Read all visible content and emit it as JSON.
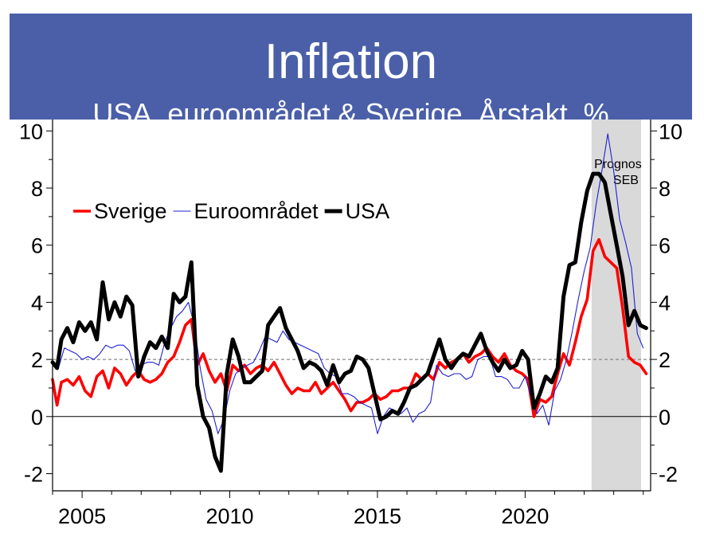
{
  "header": {
    "title": "Inflation",
    "subtitle": "USA, euroområdet & Sverige. Årstakt. %"
  },
  "chart_data": {
    "type": "line",
    "ylim": [
      -2.6,
      10.4
    ],
    "xlim": [
      2004.0,
      2024.25
    ],
    "yticks": [
      -2,
      0,
      2,
      4,
      6,
      8,
      10
    ],
    "ytick_labels": [
      "-2",
      "0",
      "2",
      "4",
      "6",
      "8",
      "10"
    ],
    "xticks": [
      2005,
      2010,
      2015,
      2020
    ],
    "xtick_labels": [
      "2005",
      "2010",
      "2015",
      "2020"
    ],
    "reference_line": 2,
    "forecast_band": {
      "from": 2022.25,
      "to": 2024.25,
      "label_line1": "Prognos",
      "label_line2": "SEB",
      "color": "#d9d9d9"
    },
    "legend": {
      "placement": "upper-left"
    },
    "colors": {
      "Sverige": "#ff0000",
      "Euroområdet": "#1f1fd6",
      "USA": "#000000",
      "banner": "#4a5fa8"
    },
    "series": [
      {
        "name": "Sverige",
        "x": [
          2004.0,
          2004.15,
          2004.3,
          2004.5,
          2004.7,
          2004.9,
          2005.1,
          2005.3,
          2005.5,
          2005.7,
          2005.9,
          2006.1,
          2006.3,
          2006.5,
          2006.7,
          2006.9,
          2007.1,
          2007.3,
          2007.5,
          2007.7,
          2007.9,
          2008.1,
          2008.3,
          2008.5,
          2008.7,
          2008.9,
          2009.1,
          2009.3,
          2009.5,
          2009.7,
          2009.9,
          2010.1,
          2010.3,
          2010.5,
          2010.7,
          2010.9,
          2011.1,
          2011.3,
          2011.5,
          2011.7,
          2011.9,
          2012.1,
          2012.3,
          2012.5,
          2012.7,
          2012.9,
          2013.1,
          2013.3,
          2013.5,
          2013.7,
          2013.9,
          2014.1,
          2014.3,
          2014.5,
          2014.7,
          2014.9,
          2015.1,
          2015.3,
          2015.5,
          2015.7,
          2015.9,
          2016.1,
          2016.3,
          2016.5,
          2016.7,
          2016.9,
          2017.1,
          2017.3,
          2017.5,
          2017.7,
          2017.9,
          2018.1,
          2018.3,
          2018.5,
          2018.7,
          2018.9,
          2019.1,
          2019.3,
          2019.5,
          2019.7,
          2019.9,
          2020.1,
          2020.3,
          2020.5,
          2020.7,
          2020.9,
          2021.1,
          2021.3,
          2021.5,
          2021.7,
          2021.9,
          2022.1,
          2022.3,
          2022.5,
          2022.7,
          2022.9,
          2023.1,
          2023.3,
          2023.5,
          2023.7,
          2023.9,
          2024.1
        ],
        "values": [
          1.3,
          0.4,
          1.2,
          1.3,
          1.1,
          1.4,
          0.9,
          0.7,
          1.4,
          1.6,
          1.0,
          1.7,
          1.5,
          1.1,
          1.4,
          1.6,
          1.3,
          1.2,
          1.3,
          1.5,
          1.9,
          2.1,
          2.6,
          3.2,
          3.4,
          1.8,
          2.2,
          1.6,
          1.2,
          1.5,
          0.9,
          1.8,
          1.6,
          1.8,
          1.5,
          1.7,
          1.8,
          1.6,
          1.9,
          1.5,
          1.1,
          0.8,
          1.0,
          0.9,
          0.9,
          1.2,
          0.8,
          1.0,
          1.2,
          0.9,
          0.6,
          0.2,
          0.5,
          0.5,
          0.6,
          0.8,
          0.6,
          0.7,
          0.9,
          0.9,
          1.0,
          1.0,
          1.5,
          1.3,
          1.5,
          1.3,
          1.9,
          1.7,
          1.9,
          2.0,
          2.2,
          1.9,
          2.1,
          2.2,
          2.4,
          2.1,
          1.9,
          2.2,
          1.8,
          1.6,
          1.5,
          1.3,
          0.0,
          0.6,
          0.5,
          0.7,
          1.5,
          2.2,
          1.8,
          2.6,
          3.5,
          4.1,
          5.8,
          6.2,
          5.6,
          5.4,
          5.2,
          3.8,
          2.1,
          1.9,
          1.8,
          1.5
        ]
      },
      {
        "name": "Euroområdet",
        "x": [
          2004.0,
          2004.2,
          2004.4,
          2004.6,
          2004.8,
          2005.0,
          2005.2,
          2005.4,
          2005.6,
          2005.8,
          2006.0,
          2006.2,
          2006.4,
          2006.6,
          2006.8,
          2007.0,
          2007.2,
          2007.4,
          2007.6,
          2007.8,
          2008.0,
          2008.2,
          2008.4,
          2008.6,
          2008.8,
          2009.0,
          2009.2,
          2009.4,
          2009.6,
          2009.8,
          2010.0,
          2010.2,
          2010.4,
          2010.6,
          2010.8,
          2011.0,
          2011.2,
          2011.4,
          2011.6,
          2011.8,
          2012.0,
          2012.2,
          2012.4,
          2012.6,
          2012.8,
          2013.0,
          2013.2,
          2013.4,
          2013.6,
          2013.8,
          2014.0,
          2014.2,
          2014.4,
          2014.6,
          2014.8,
          2015.0,
          2015.2,
          2015.4,
          2015.6,
          2015.8,
          2016.0,
          2016.2,
          2016.4,
          2016.6,
          2016.8,
          2017.0,
          2017.2,
          2017.4,
          2017.6,
          2017.8,
          2018.0,
          2018.2,
          2018.4,
          2018.6,
          2018.8,
          2019.0,
          2019.2,
          2019.4,
          2019.6,
          2019.8,
          2020.0,
          2020.2,
          2020.4,
          2020.6,
          2020.8,
          2021.0,
          2021.2,
          2021.4,
          2021.6,
          2021.8,
          2022.0,
          2022.2,
          2022.4,
          2022.6,
          2022.8,
          2023.0,
          2023.2,
          2023.4,
          2023.6,
          2023.8,
          2024.0
        ],
        "values": [
          1.8,
          1.7,
          2.4,
          2.3,
          2.2,
          2.0,
          2.1,
          2.0,
          2.2,
          2.5,
          2.4,
          2.5,
          2.5,
          2.3,
          1.6,
          1.8,
          1.9,
          1.9,
          1.8,
          2.6,
          3.1,
          3.5,
          3.7,
          4.0,
          3.2,
          1.7,
          0.6,
          0.2,
          -0.6,
          -0.1,
          0.9,
          1.5,
          1.7,
          1.8,
          1.9,
          2.3,
          2.8,
          2.7,
          2.6,
          3.0,
          2.7,
          2.6,
          2.5,
          2.4,
          2.3,
          2.2,
          1.7,
          1.5,
          1.4,
          0.8,
          0.8,
          0.7,
          0.5,
          0.4,
          0.3,
          -0.6,
          0.0,
          0.3,
          0.2,
          0.1,
          0.3,
          -0.2,
          0.1,
          0.2,
          0.5,
          1.8,
          1.5,
          1.4,
          1.5,
          1.5,
          1.3,
          1.4,
          2.0,
          2.1,
          2.1,
          1.4,
          1.4,
          1.3,
          1.0,
          1.0,
          1.4,
          0.7,
          0.1,
          0.4,
          -0.3,
          0.9,
          1.3,
          2.0,
          3.0,
          4.1,
          5.1,
          5.9,
          7.4,
          8.6,
          9.9,
          8.6,
          6.9,
          6.1,
          5.2,
          2.9,
          2.4
        ],
        "thin_line": true
      },
      {
        "name": "USA",
        "x": [
          2004.0,
          2004.15,
          2004.3,
          2004.5,
          2004.7,
          2004.9,
          2005.1,
          2005.3,
          2005.5,
          2005.7,
          2005.9,
          2006.1,
          2006.3,
          2006.5,
          2006.7,
          2006.9,
          2007.1,
          2007.3,
          2007.5,
          2007.7,
          2007.9,
          2008.1,
          2008.3,
          2008.5,
          2008.7,
          2008.9,
          2009.1,
          2009.3,
          2009.5,
          2009.7,
          2009.9,
          2010.1,
          2010.3,
          2010.5,
          2010.7,
          2010.9,
          2011.1,
          2011.3,
          2011.5,
          2011.7,
          2011.9,
          2012.1,
          2012.3,
          2012.5,
          2012.7,
          2012.9,
          2013.1,
          2013.3,
          2013.5,
          2013.7,
          2013.9,
          2014.1,
          2014.3,
          2014.5,
          2014.7,
          2014.9,
          2015.1,
          2015.3,
          2015.5,
          2015.7,
          2015.9,
          2016.1,
          2016.3,
          2016.5,
          2016.7,
          2016.9,
          2017.1,
          2017.3,
          2017.5,
          2017.7,
          2017.9,
          2018.1,
          2018.3,
          2018.5,
          2018.7,
          2018.9,
          2019.1,
          2019.3,
          2019.5,
          2019.7,
          2019.9,
          2020.1,
          2020.3,
          2020.5,
          2020.7,
          2020.9,
          2021.1,
          2021.3,
          2021.5,
          2021.7,
          2021.9,
          2022.1,
          2022.3,
          2022.5,
          2022.7,
          2022.9,
          2023.1,
          2023.3,
          2023.5,
          2023.7,
          2023.9,
          2024.1
        ],
        "values": [
          1.9,
          1.7,
          2.7,
          3.1,
          2.6,
          3.3,
          3.0,
          3.3,
          2.7,
          4.7,
          3.4,
          4.0,
          3.5,
          4.2,
          3.9,
          1.4,
          2.1,
          2.6,
          2.4,
          2.8,
          2.4,
          4.3,
          4.0,
          4.2,
          5.4,
          1.1,
          0.0,
          -0.4,
          -1.4,
          -1.9,
          1.5,
          2.7,
          2.1,
          1.2,
          1.2,
          1.4,
          1.6,
          3.2,
          3.5,
          3.8,
          3.1,
          2.7,
          2.3,
          1.7,
          1.9,
          1.8,
          1.6,
          1.1,
          1.8,
          1.2,
          1.5,
          1.6,
          2.1,
          2.0,
          1.7,
          0.8,
          -0.1,
          0.0,
          0.2,
          0.1,
          0.5,
          1.0,
          1.1,
          1.3,
          1.5,
          2.1,
          2.7,
          2.0,
          1.7,
          2.0,
          2.2,
          2.1,
          2.5,
          2.9,
          2.3,
          1.9,
          1.6,
          2.0,
          1.7,
          1.8,
          2.3,
          2.0,
          0.3,
          0.8,
          1.4,
          1.2,
          1.7,
          4.2,
          5.3,
          5.4,
          6.8,
          7.9,
          8.5,
          8.5,
          8.2,
          7.1,
          6.0,
          4.9,
          3.2,
          3.7,
          3.2,
          3.1
        ]
      }
    ]
  }
}
